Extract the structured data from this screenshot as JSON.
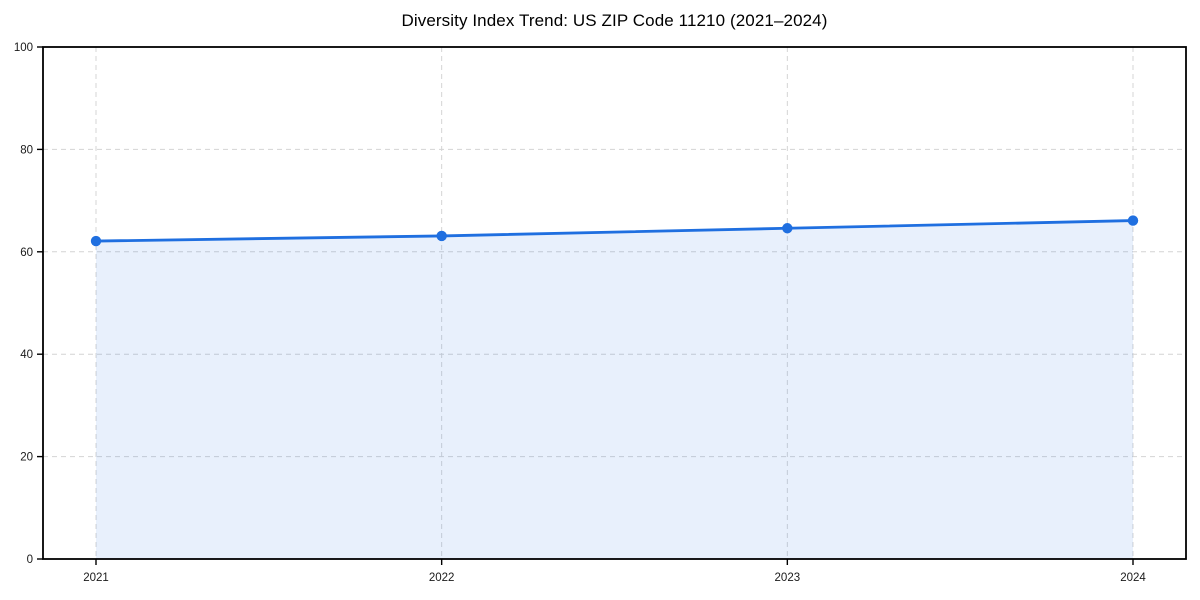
{
  "chart_data": {
    "type": "line",
    "title": "Diversity Index Trend: US ZIP Code 11210 (2021–2024)",
    "categories": [
      "2021",
      "2022",
      "2023",
      "2024"
    ],
    "series": [
      {
        "name": "Diversity Index",
        "values": [
          62.1,
          63.1,
          64.6,
          66.1
        ]
      }
    ],
    "xlabel": "",
    "ylabel": "",
    "ylim": [
      0,
      100
    ],
    "yticks": [
      0,
      20,
      40,
      60,
      80,
      100
    ],
    "grid": true,
    "grid_style": "dashed",
    "legend": "none",
    "area_fill": true,
    "markers": true,
    "colors": {
      "line": "#1f6fe0",
      "marker": "#1f6fe0",
      "area": "rgba(31,111,224,0.10)",
      "grid": "#d4d4d4",
      "axis": "#000000",
      "tick_label": "#1a1a1a",
      "title": "#000000",
      "background": "#ffffff"
    }
  }
}
